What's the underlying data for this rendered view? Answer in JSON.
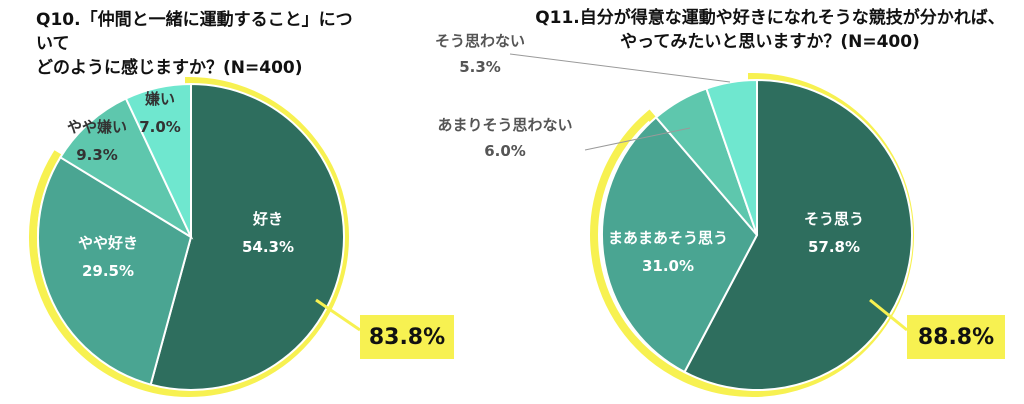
{
  "chart_data": [
    {
      "type": "pie",
      "title_lines": [
        "Q10.「仲間と一緒に運動すること」について",
        "どのように感じますか？(N=400)"
      ],
      "slices": [
        {
          "name": "好き",
          "value": 54.3,
          "label": "54.3%",
          "color": "#2e6e5e",
          "label_color": "#ffffff"
        },
        {
          "name": "やや好き",
          "value": 29.5,
          "label": "29.5%",
          "color": "#4aa592",
          "label_color": "#ffffff"
        },
        {
          "name": "やや嫌い",
          "value": 9.3,
          "label": "9.3%",
          "color": "#5ec7ad",
          "label_color": "#333333"
        },
        {
          "name": "嫌い",
          "value": 7.0,
          "label": "7.0%",
          "color": "#6fe7cf",
          "label_color": "#333333"
        }
      ],
      "highlight_total": "83.8%",
      "highlight_color": "#f7f151"
    },
    {
      "type": "pie",
      "title_lines": [
        "Q11.自分が得意な運動や好きになれそうな競技が分かれば、",
        "やってみたいと思いますか？(N=400)"
      ],
      "slices": [
        {
          "name": "そう思う",
          "value": 57.8,
          "label": "57.8%",
          "color": "#2e6e5e",
          "label_color": "#ffffff"
        },
        {
          "name": "まあまあそう思う",
          "value": 31.0,
          "label": "31.0%",
          "color": "#4aa592",
          "label_color": "#ffffff"
        },
        {
          "name": "あまりそう思わない",
          "value": 6.0,
          "label": "6.0%",
          "color": "#5ec7ad",
          "label_color": "#555555"
        },
        {
          "name": "そう思わない",
          "value": 5.3,
          "label": "5.3%",
          "color": "#6fe7cf",
          "label_color": "#555555"
        }
      ],
      "highlight_total": "88.8%",
      "highlight_color": "#f7f151"
    }
  ]
}
